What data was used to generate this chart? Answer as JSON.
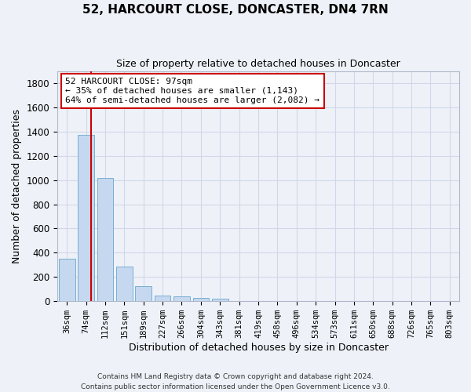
{
  "title": "52, HARCOURT CLOSE, DONCASTER, DN4 7RN",
  "subtitle": "Size of property relative to detached houses in Doncaster",
  "xlabel": "Distribution of detached houses by size in Doncaster",
  "ylabel": "Number of detached properties",
  "property_label": "52 HARCOURT CLOSE: 97sqm",
  "annotation_line1": "← 35% of detached houses are smaller (1,143)",
  "annotation_line2": "64% of semi-detached houses are larger (2,082) →",
  "footer_line1": "Contains HM Land Registry data © Crown copyright and database right 2024.",
  "footer_line2": "Contains public sector information licensed under the Open Government Licence v3.0.",
  "bar_color": "#c5d8ef",
  "bar_edge_color": "#7aaed4",
  "red_line_color": "#cc0000",
  "annotation_box_color": "#cc0000",
  "grid_color": "#d0d8e8",
  "background_color": "#eef2f8",
  "categories": [
    "36sqm",
    "74sqm",
    "112sqm",
    "151sqm",
    "189sqm",
    "227sqm",
    "266sqm",
    "304sqm",
    "343sqm",
    "381sqm",
    "419sqm",
    "458sqm",
    "496sqm",
    "534sqm",
    "573sqm",
    "611sqm",
    "650sqm",
    "688sqm",
    "726sqm",
    "765sqm",
    "803sqm"
  ],
  "bar_values": [
    350,
    1375,
    1020,
    285,
    125,
    45,
    38,
    28,
    18,
    0,
    0,
    0,
    0,
    0,
    0,
    0,
    0,
    0,
    0,
    0,
    0
  ],
  "ylim": [
    0,
    1900
  ],
  "yticks": [
    0,
    200,
    400,
    600,
    800,
    1000,
    1200,
    1400,
    1600,
    1800
  ],
  "red_line_x": 1.27,
  "figsize": [
    6.0,
    5.0
  ],
  "dpi": 100
}
